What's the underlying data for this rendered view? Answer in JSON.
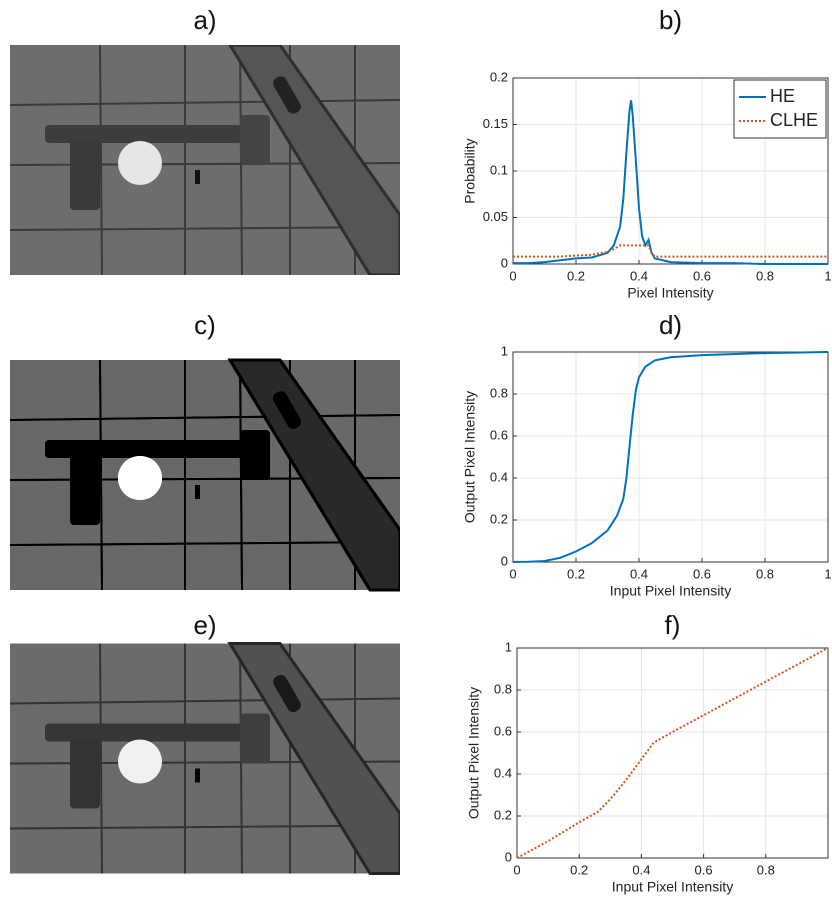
{
  "images": [
    "a)",
    "c)",
    "e)"
  ],
  "chart_data": [
    {
      "type": "line",
      "title": "b)",
      "xlabel": "Pixel Intensity",
      "ylabel": "Probability",
      "x": [
        0,
        0.05,
        0.1,
        0.15,
        0.2,
        0.25,
        0.3,
        0.32,
        0.34,
        0.35,
        0.36,
        0.37,
        0.375,
        0.38,
        0.39,
        0.4,
        0.41,
        0.42,
        0.43,
        0.44,
        0.45,
        0.5,
        0.6,
        0.7,
        0.8,
        0.9,
        1
      ],
      "series": [
        {
          "name": "HE",
          "color": "#0072bd",
          "linestyle": "solid",
          "values": [
            0.001,
            0.001,
            0.002,
            0.004,
            0.006,
            0.007,
            0.012,
            0.02,
            0.04,
            0.07,
            0.12,
            0.165,
            0.176,
            0.16,
            0.11,
            0.06,
            0.03,
            0.02,
            0.026,
            0.012,
            0.006,
            0.002,
            0.001,
            0.001,
            0,
            0,
            0
          ]
        },
        {
          "name": "CLHE",
          "color": "#d95319",
          "linestyle": "dotted",
          "values": [
            0.008,
            0.008,
            0.008,
            0.008,
            0.009,
            0.01,
            0.013,
            0.016,
            0.02,
            0.02,
            0.02,
            0.02,
            0.02,
            0.02,
            0.02,
            0.02,
            0.02,
            0.02,
            0.02,
            0.012,
            0.008,
            0.008,
            0.008,
            0.008,
            0.008,
            0.008,
            0.008
          ]
        }
      ],
      "xlim": [
        0,
        1
      ],
      "xticks": [
        0,
        0.2,
        0.4,
        0.6,
        0.8,
        1
      ],
      "ylim": [
        0,
        0.2
      ],
      "yticks": [
        0,
        0.05,
        0.1,
        0.15,
        0.2
      ],
      "grid": true,
      "legend": "upper right"
    },
    {
      "type": "line",
      "title": "d)",
      "xlabel": "Input Pixel Intensity",
      "ylabel": "Output Pixel Intensity",
      "x": [
        0,
        0.05,
        0.1,
        0.15,
        0.2,
        0.25,
        0.3,
        0.33,
        0.35,
        0.36,
        0.37,
        0.38,
        0.39,
        0.4,
        0.42,
        0.45,
        0.5,
        0.6,
        0.8,
        1
      ],
      "series": [
        {
          "color": "#0072bd",
          "linestyle": "solid",
          "values": [
            0,
            0.001,
            0.005,
            0.02,
            0.05,
            0.09,
            0.15,
            0.22,
            0.3,
            0.4,
            0.55,
            0.7,
            0.82,
            0.88,
            0.93,
            0.96,
            0.975,
            0.985,
            0.995,
            1
          ]
        }
      ],
      "xlim": [
        0,
        1
      ],
      "xticks": [
        0,
        0.2,
        0.4,
        0.6,
        0.8,
        1
      ],
      "ylim": [
        0,
        1
      ],
      "yticks": [
        0,
        0.2,
        0.4,
        0.6,
        0.8,
        1
      ],
      "grid": true
    },
    {
      "type": "line",
      "title": "f)",
      "xlabel": "Input Pixel Intensity",
      "ylabel": "Output Pixel Intensity",
      "x": [
        0,
        0.1,
        0.2,
        0.26,
        0.3,
        0.35,
        0.4,
        0.44,
        0.5,
        0.6,
        0.7,
        0.8,
        0.9,
        1
      ],
      "series": [
        {
          "color": "#d95319",
          "linestyle": "dotted",
          "values": [
            0,
            0.08,
            0.17,
            0.22,
            0.28,
            0.37,
            0.47,
            0.55,
            0.6,
            0.68,
            0.76,
            0.84,
            0.92,
            1
          ]
        }
      ],
      "xlim": [
        0,
        1
      ],
      "xticks": [
        0,
        0.2,
        0.4,
        0.6,
        0.8
      ],
      "ylim": [
        0,
        1
      ],
      "yticks": [
        0,
        0.2,
        0.4,
        0.6,
        0.8,
        1
      ],
      "grid": true
    }
  ]
}
